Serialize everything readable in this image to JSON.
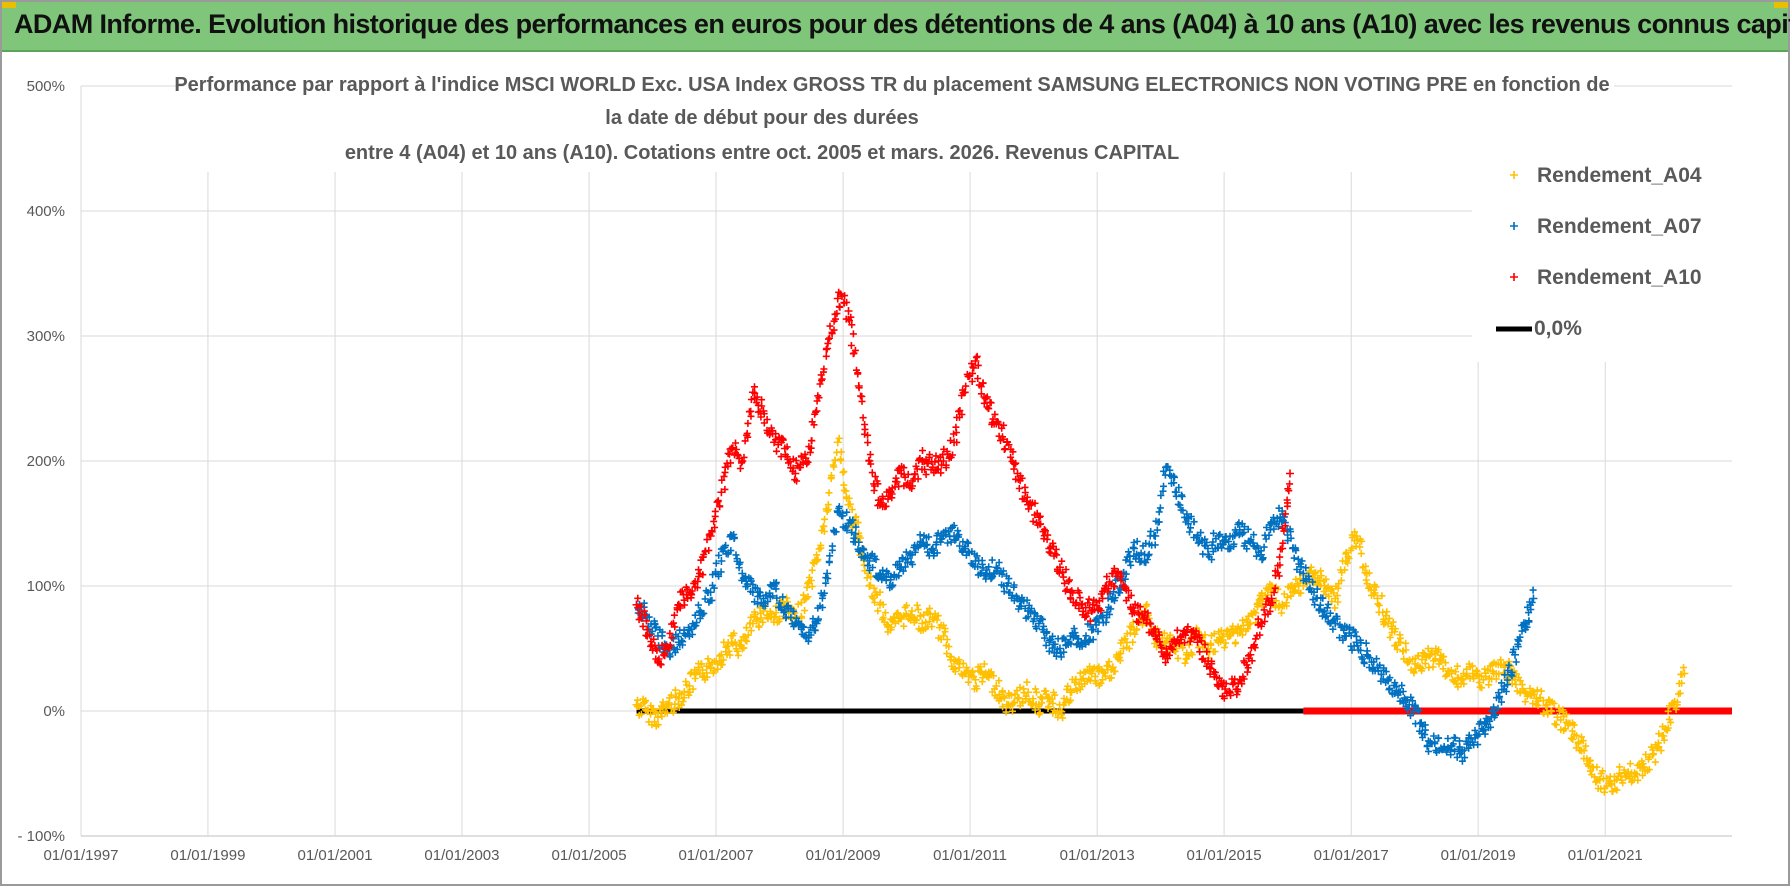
{
  "banner": {
    "title": "ADAM Informe. Evolution historique des performances en euros pour des détentions de 4 ans (A04) à 10 ans (A10) avec les revenus connus capitalisés"
  },
  "colors": {
    "banner_bg": "#7fc57a",
    "A04": "#ffc000",
    "A07": "#0070c0",
    "A10": "#ff0000",
    "zero_line": "#000000",
    "grid": "#d9d9d9"
  },
  "chart_data": {
    "type": "scatter",
    "title_lines": [
      "Performance par rapport à l'indice MSCI WORLD Exc. USA Index GROSS TR  du placement SAMSUNG ELECTRONICS NON VOTING PRE en fonction de",
      "la date de début pour des durées",
      "entre 4 (A04) et 10 ans (A10). Cotations entre oct. 2005 et mars. 2026. Revenus CAPITAL"
    ],
    "xlabel": "",
    "ylabel": "",
    "x_range": [
      "1997-01-01",
      "2022-12-31"
    ],
    "x_tick_labels": [
      "01/01/1997",
      "01/01/1999",
      "01/01/2001",
      "01/01/2003",
      "01/01/2005",
      "01/01/2007",
      "01/01/2009",
      "01/01/2011",
      "01/01/2013",
      "01/01/2015",
      "01/01/2017",
      "01/01/2019",
      "01/01/2021"
    ],
    "ylim": [
      -100,
      500
    ],
    "y_tick_labels": [
      "- 100%",
      "0%",
      "100%",
      "200%",
      "300%",
      "400%",
      "500%"
    ],
    "y_ticks": [
      -100,
      0,
      100,
      200,
      300,
      400,
      500
    ],
    "grid": true,
    "legend_position": "top-right",
    "series": [
      {
        "name": "Rendement_A04",
        "color": "#ffc000",
        "marker": "+",
        "points": [
          [
            "2005-10-01",
            5
          ],
          [
            "2005-12-01",
            0
          ],
          [
            "2006-02-01",
            -5
          ],
          [
            "2006-04-01",
            5
          ],
          [
            "2006-06-01",
            10
          ],
          [
            "2006-08-01",
            20
          ],
          [
            "2006-10-01",
            30
          ],
          [
            "2006-12-01",
            35
          ],
          [
            "2007-02-01",
            45
          ],
          [
            "2007-04-01",
            55
          ],
          [
            "2007-06-01",
            50
          ],
          [
            "2007-08-01",
            70
          ],
          [
            "2007-10-01",
            80
          ],
          [
            "2007-12-01",
            75
          ],
          [
            "2008-02-01",
            85
          ],
          [
            "2008-04-01",
            70
          ],
          [
            "2008-06-01",
            90
          ],
          [
            "2008-08-01",
            120
          ],
          [
            "2008-10-01",
            160
          ],
          [
            "2008-12-01",
            215
          ],
          [
            "2009-02-01",
            165
          ],
          [
            "2009-04-01",
            140
          ],
          [
            "2009-06-01",
            100
          ],
          [
            "2009-08-01",
            85
          ],
          [
            "2009-10-01",
            65
          ],
          [
            "2009-12-01",
            75
          ],
          [
            "2010-02-01",
            80
          ],
          [
            "2010-04-01",
            70
          ],
          [
            "2010-06-01",
            75
          ],
          [
            "2010-08-01",
            60
          ],
          [
            "2010-10-01",
            40
          ],
          [
            "2010-12-01",
            30
          ],
          [
            "2011-02-01",
            25
          ],
          [
            "2011-04-01",
            30
          ],
          [
            "2011-06-01",
            20
          ],
          [
            "2011-08-01",
            5
          ],
          [
            "2011-10-01",
            10
          ],
          [
            "2011-12-01",
            15
          ],
          [
            "2012-02-01",
            5
          ],
          [
            "2012-04-01",
            10
          ],
          [
            "2012-06-01",
            0
          ],
          [
            "2012-08-01",
            15
          ],
          [
            "2012-10-01",
            25
          ],
          [
            "2012-12-01",
            30
          ],
          [
            "2013-02-01",
            25
          ],
          [
            "2013-04-01",
            35
          ],
          [
            "2013-06-01",
            50
          ],
          [
            "2013-08-01",
            65
          ],
          [
            "2013-10-01",
            80
          ],
          [
            "2013-12-01",
            60
          ],
          [
            "2014-02-01",
            55
          ],
          [
            "2014-04-01",
            50
          ],
          [
            "2014-06-01",
            45
          ],
          [
            "2014-08-01",
            60
          ],
          [
            "2014-10-01",
            50
          ],
          [
            "2014-12-01",
            55
          ],
          [
            "2015-02-01",
            60
          ],
          [
            "2015-04-01",
            65
          ],
          [
            "2015-06-01",
            70
          ],
          [
            "2015-08-01",
            90
          ],
          [
            "2015-10-01",
            95
          ],
          [
            "2015-12-01",
            85
          ],
          [
            "2016-02-01",
            95
          ],
          [
            "2016-04-01",
            100
          ],
          [
            "2016-06-01",
            110
          ],
          [
            "2016-08-01",
            100
          ],
          [
            "2016-10-01",
            90
          ],
          [
            "2016-12-01",
            120
          ],
          [
            "2017-02-01",
            140
          ],
          [
            "2017-04-01",
            110
          ],
          [
            "2017-06-01",
            90
          ],
          [
            "2017-08-01",
            70
          ],
          [
            "2017-10-01",
            55
          ],
          [
            "2017-12-01",
            40
          ],
          [
            "2018-02-01",
            35
          ],
          [
            "2018-04-01",
            45
          ],
          [
            "2018-06-01",
            40
          ],
          [
            "2018-08-01",
            30
          ],
          [
            "2018-10-01",
            25
          ],
          [
            "2018-12-01",
            30
          ],
          [
            "2019-02-01",
            25
          ],
          [
            "2019-04-01",
            30
          ],
          [
            "2019-06-01",
            35
          ],
          [
            "2019-08-01",
            25
          ],
          [
            "2019-10-01",
            15
          ],
          [
            "2019-12-01",
            10
          ],
          [
            "2020-02-01",
            5
          ],
          [
            "2020-04-01",
            -5
          ],
          [
            "2020-06-01",
            -10
          ],
          [
            "2020-08-01",
            -25
          ],
          [
            "2020-10-01",
            -40
          ],
          [
            "2020-12-01",
            -55
          ],
          [
            "2021-02-01",
            -58
          ],
          [
            "2021-04-01",
            -52
          ],
          [
            "2021-06-01",
            -50
          ],
          [
            "2021-08-01",
            -45
          ],
          [
            "2021-10-01",
            -35
          ],
          [
            "2021-12-01",
            -20
          ],
          [
            "2022-02-01",
            5
          ],
          [
            "2022-04-01",
            30
          ]
        ]
      },
      {
        "name": "Rendement_A07",
        "color": "#0070c0",
        "marker": "+",
        "points": [
          [
            "2005-10-01",
            85
          ],
          [
            "2005-12-01",
            75
          ],
          [
            "2006-02-01",
            60
          ],
          [
            "2006-04-01",
            50
          ],
          [
            "2006-06-01",
            55
          ],
          [
            "2006-08-01",
            65
          ],
          [
            "2006-10-01",
            80
          ],
          [
            "2006-12-01",
            95
          ],
          [
            "2007-02-01",
            120
          ],
          [
            "2007-04-01",
            140
          ],
          [
            "2007-06-01",
            110
          ],
          [
            "2007-08-01",
            95
          ],
          [
            "2007-10-01",
            90
          ],
          [
            "2007-12-01",
            100
          ],
          [
            "2008-02-01",
            80
          ],
          [
            "2008-04-01",
            70
          ],
          [
            "2008-06-01",
            60
          ],
          [
            "2008-08-01",
            70
          ],
          [
            "2008-10-01",
            110
          ],
          [
            "2008-12-01",
            160
          ],
          [
            "2009-02-01",
            150
          ],
          [
            "2009-04-01",
            135
          ],
          [
            "2009-06-01",
            120
          ],
          [
            "2009-08-01",
            110
          ],
          [
            "2009-10-01",
            105
          ],
          [
            "2009-12-01",
            115
          ],
          [
            "2010-02-01",
            125
          ],
          [
            "2010-04-01",
            135
          ],
          [
            "2010-06-01",
            130
          ],
          [
            "2010-08-01",
            140
          ],
          [
            "2010-10-01",
            140
          ],
          [
            "2010-12-01",
            130
          ],
          [
            "2011-02-01",
            120
          ],
          [
            "2011-04-01",
            110
          ],
          [
            "2011-06-01",
            115
          ],
          [
            "2011-08-01",
            100
          ],
          [
            "2011-10-01",
            90
          ],
          [
            "2011-12-01",
            80
          ],
          [
            "2012-02-01",
            70
          ],
          [
            "2012-04-01",
            55
          ],
          [
            "2012-06-01",
            50
          ],
          [
            "2012-08-01",
            60
          ],
          [
            "2012-10-01",
            55
          ],
          [
            "2012-12-01",
            65
          ],
          [
            "2013-02-01",
            75
          ],
          [
            "2013-04-01",
            90
          ],
          [
            "2013-06-01",
            110
          ],
          [
            "2013-08-01",
            130
          ],
          [
            "2013-10-01",
            125
          ],
          [
            "2013-12-01",
            140
          ],
          [
            "2014-02-01",
            195
          ],
          [
            "2014-04-01",
            175
          ],
          [
            "2014-06-01",
            155
          ],
          [
            "2014-08-01",
            140
          ],
          [
            "2014-10-01",
            125
          ],
          [
            "2014-12-01",
            140
          ],
          [
            "2015-02-01",
            130
          ],
          [
            "2015-04-01",
            145
          ],
          [
            "2015-06-01",
            135
          ],
          [
            "2015-08-01",
            125
          ],
          [
            "2015-10-01",
            150
          ],
          [
            "2015-12-01",
            160
          ],
          [
            "2016-02-01",
            130
          ],
          [
            "2016-04-01",
            110
          ],
          [
            "2016-06-01",
            95
          ],
          [
            "2016-08-01",
            80
          ],
          [
            "2016-10-01",
            70
          ],
          [
            "2016-12-01",
            60
          ],
          [
            "2017-02-01",
            55
          ],
          [
            "2017-04-01",
            45
          ],
          [
            "2017-06-01",
            35
          ],
          [
            "2017-08-01",
            25
          ],
          [
            "2017-10-01",
            15
          ],
          [
            "2017-12-01",
            5
          ],
          [
            "2018-02-01",
            -10
          ],
          [
            "2018-04-01",
            -25
          ],
          [
            "2018-06-01",
            -30
          ],
          [
            "2018-08-01",
            -28
          ],
          [
            "2018-10-01",
            -32
          ],
          [
            "2018-12-01",
            -25
          ],
          [
            "2019-02-01",
            -15
          ],
          [
            "2019-04-01",
            0
          ],
          [
            "2019-06-01",
            20
          ],
          [
            "2019-08-01",
            45
          ],
          [
            "2019-10-01",
            70
          ],
          [
            "2019-11-15",
            90
          ]
        ]
      },
      {
        "name": "Rendement_A10",
        "color": "#ff0000",
        "marker": "+",
        "points": [
          [
            "2005-10-01",
            85
          ],
          [
            "2005-12-01",
            65
          ],
          [
            "2006-02-01",
            40
          ],
          [
            "2006-04-01",
            50
          ],
          [
            "2006-06-01",
            85
          ],
          [
            "2006-08-01",
            95
          ],
          [
            "2006-10-01",
            110
          ],
          [
            "2006-12-01",
            140
          ],
          [
            "2007-02-01",
            175
          ],
          [
            "2007-04-01",
            210
          ],
          [
            "2007-06-01",
            200
          ],
          [
            "2007-08-01",
            255
          ],
          [
            "2007-10-01",
            240
          ],
          [
            "2007-12-01",
            215
          ],
          [
            "2008-02-01",
            210
          ],
          [
            "2008-04-01",
            190
          ],
          [
            "2008-06-01",
            200
          ],
          [
            "2008-08-01",
            240
          ],
          [
            "2008-10-01",
            290
          ],
          [
            "2008-12-01",
            330
          ],
          [
            "2009-02-01",
            320
          ],
          [
            "2009-04-01",
            260
          ],
          [
            "2009-06-01",
            200
          ],
          [
            "2009-08-01",
            165
          ],
          [
            "2009-10-01",
            175
          ],
          [
            "2009-12-01",
            190
          ],
          [
            "2010-02-01",
            180
          ],
          [
            "2010-04-01",
            200
          ],
          [
            "2010-06-01",
            195
          ],
          [
            "2010-08-01",
            200
          ],
          [
            "2010-10-01",
            215
          ],
          [
            "2010-12-01",
            255
          ],
          [
            "2011-02-01",
            280
          ],
          [
            "2011-04-01",
            250
          ],
          [
            "2011-06-01",
            230
          ],
          [
            "2011-08-01",
            215
          ],
          [
            "2011-10-01",
            190
          ],
          [
            "2011-12-01",
            165
          ],
          [
            "2012-02-01",
            155
          ],
          [
            "2012-04-01",
            130
          ],
          [
            "2012-06-01",
            115
          ],
          [
            "2012-08-01",
            95
          ],
          [
            "2012-10-01",
            85
          ],
          [
            "2012-12-01",
            80
          ],
          [
            "2013-02-01",
            90
          ],
          [
            "2013-04-01",
            110
          ],
          [
            "2013-06-01",
            100
          ],
          [
            "2013-08-01",
            80
          ],
          [
            "2013-10-01",
            75
          ],
          [
            "2013-12-01",
            60
          ],
          [
            "2014-02-01",
            45
          ],
          [
            "2014-04-01",
            55
          ],
          [
            "2014-06-01",
            65
          ],
          [
            "2014-08-01",
            55
          ],
          [
            "2014-10-01",
            40
          ],
          [
            "2014-12-01",
            20
          ],
          [
            "2015-02-01",
            15
          ],
          [
            "2015-04-01",
            25
          ],
          [
            "2015-06-01",
            45
          ],
          [
            "2015-08-01",
            70
          ],
          [
            "2015-10-01",
            90
          ],
          [
            "2015-12-01",
            130
          ],
          [
            "2016-01-15",
            190
          ]
        ]
      }
    ],
    "reference_lines": [
      {
        "name": "0,0%",
        "color": "#000000",
        "y": 0,
        "x_from": "2005-10-01",
        "x_to": "2016-04-01"
      },
      {
        "name": "0,0% (A10 end)",
        "color": "#ff0000",
        "y": 0,
        "x_from": "2016-04-01",
        "x_to": "2022-12-31"
      }
    ]
  },
  "legend": [
    {
      "label": "Rendement_A04",
      "color": "#ffc000",
      "marker": "+"
    },
    {
      "label": "Rendement_A07",
      "color": "#0070c0",
      "marker": "+"
    },
    {
      "label": "Rendement_A10",
      "color": "#ff0000",
      "marker": "+"
    },
    {
      "label": "0,0%",
      "color": "#000000",
      "marker": "line"
    }
  ]
}
